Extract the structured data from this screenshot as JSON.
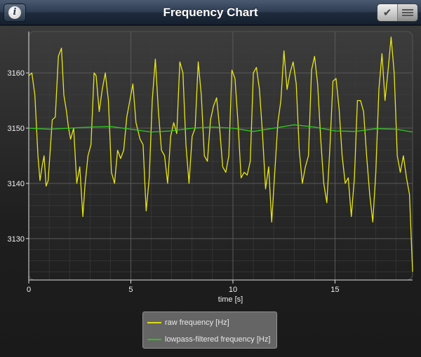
{
  "navbar": {
    "title": "Frequency Chart",
    "info_icon": "info-icon",
    "check_icon": "checkmark-icon",
    "list_icon": "list-icon"
  },
  "colors": {
    "raw": "#e8e615",
    "lowpass": "#2ecc1a",
    "grid": "#5a5a5a",
    "plot_bg": "#2a2a2a"
  },
  "legend": {
    "placement": "bottom-center",
    "items": [
      {
        "label": "raw frequency [Hz]",
        "color": "#e8e615"
      },
      {
        "label": "lowpass-filtered frequency [Hz]",
        "color": "#2ecc1a"
      }
    ]
  },
  "chart_data": {
    "type": "line",
    "title": "",
    "xlabel": "time [s]",
    "ylabel": "",
    "xlim": [
      0,
      18.8
    ],
    "ylim": [
      3122.5,
      3167.5
    ],
    "xticks": [
      0,
      5,
      10,
      15
    ],
    "xtick_labels": [
      "0",
      "5",
      "10",
      "15"
    ],
    "yticks": [
      3130,
      3140,
      3150,
      3160
    ],
    "ytick_labels": [
      "3130",
      "3140",
      "3150",
      "3160"
    ],
    "grid": true,
    "series": [
      {
        "name": "raw frequency [Hz]",
        "x": [
          0,
          0.15,
          0.3,
          0.45,
          0.55,
          0.65,
          0.75,
          0.85,
          0.95,
          1.05,
          1.15,
          1.3,
          1.45,
          1.6,
          1.72,
          1.85,
          1.95,
          2.05,
          2.2,
          2.35,
          2.5,
          2.65,
          2.75,
          2.9,
          3.05,
          3.2,
          3.3,
          3.45,
          3.6,
          3.75,
          3.9,
          4.05,
          4.2,
          4.35,
          4.5,
          4.65,
          4.8,
          4.95,
          5.1,
          5.25,
          5.45,
          5.6,
          5.75,
          5.9,
          6.05,
          6.2,
          6.35,
          6.5,
          6.65,
          6.8,
          6.95,
          7.1,
          7.25,
          7.4,
          7.55,
          7.7,
          7.85,
          8.0,
          8.15,
          8.3,
          8.45,
          8.6,
          8.75,
          8.9,
          9.05,
          9.2,
          9.35,
          9.5,
          9.65,
          9.8,
          9.95,
          10.1,
          10.25,
          10.4,
          10.55,
          10.7,
          10.85,
          11.0,
          11.15,
          11.3,
          11.45,
          11.6,
          11.75,
          11.9,
          12.05,
          12.2,
          12.35,
          12.5,
          12.65,
          12.8,
          12.95,
          13.1,
          13.25,
          13.4,
          13.55,
          13.7,
          13.85,
          14.0,
          14.15,
          14.3,
          14.45,
          14.6,
          14.75,
          14.9,
          15.05,
          15.2,
          15.35,
          15.5,
          15.65,
          15.8,
          15.95,
          16.1,
          16.25,
          16.4,
          16.55,
          16.7,
          16.85,
          17.0,
          17.15,
          17.3,
          17.45,
          17.6,
          17.75,
          17.9,
          18.05,
          18.2,
          18.35,
          18.5,
          18.65,
          18.8
        ],
        "values": [
          3159.5,
          3160,
          3156,
          3145,
          3140.5,
          3143,
          3145,
          3139.5,
          3140.5,
          3146,
          3151.5,
          3152,
          3163,
          3164.5,
          3156,
          3153,
          3150,
          3148,
          3150,
          3140,
          3143,
          3134,
          3139.5,
          3145,
          3147,
          3160,
          3159.5,
          3153,
          3157,
          3160,
          3155,
          3142,
          3140,
          3146,
          3144.5,
          3146,
          3152,
          3155,
          3158,
          3151,
          3148,
          3147,
          3135,
          3141,
          3155,
          3162.5,
          3153,
          3146,
          3145,
          3140,
          3148.5,
          3151,
          3149,
          3162,
          3160,
          3147,
          3140,
          3148.5,
          3150,
          3162,
          3156,
          3145,
          3144,
          3151.5,
          3154,
          3155.5,
          3150,
          3143,
          3142,
          3145,
          3160.5,
          3159,
          3151,
          3141,
          3142,
          3141.5,
          3144,
          3160,
          3161,
          3157,
          3149,
          3139,
          3143,
          3133,
          3142,
          3151,
          3155,
          3164,
          3157,
          3160,
          3162,
          3158,
          3146,
          3140,
          3143,
          3145,
          3160.5,
          3163,
          3158,
          3148,
          3140,
          3136.5,
          3146.5,
          3158.5,
          3159,
          3153.5,
          3145,
          3140,
          3141,
          3134,
          3141,
          3155,
          3155,
          3153,
          3145,
          3138,
          3133,
          3142,
          3157,
          3163.5,
          3155,
          3160.5,
          3166.5,
          3160,
          3145,
          3142,
          3145,
          3141,
          3138,
          3124
        ]
      },
      {
        "name": "lowpass-filtered frequency [Hz]",
        "x": [
          0,
          1,
          2,
          3,
          4,
          5,
          6,
          7,
          8,
          9,
          10,
          11,
          12,
          13,
          14,
          15,
          16,
          17,
          18,
          18.8
        ],
        "values": [
          3150,
          3149.8,
          3150,
          3150.2,
          3150.3,
          3149.8,
          3149.3,
          3149.5,
          3150,
          3150.2,
          3150,
          3149.4,
          3150,
          3150.6,
          3150.2,
          3149.5,
          3149.4,
          3149.9,
          3149.8,
          3149.3
        ]
      }
    ]
  }
}
